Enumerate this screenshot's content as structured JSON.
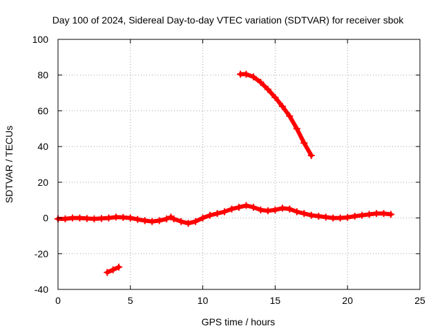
{
  "chart_data": {
    "type": "scatter",
    "title": "Day 100 of 2024, Sidereal Day-to-day VTEC variation (SDTVAR) for receiver sbok",
    "xlabel": "GPS time / hours",
    "ylabel": "SDTVAR / TECUs",
    "xlim": [
      0,
      25
    ],
    "ylim": [
      -40,
      100
    ],
    "xticks": [
      0,
      5,
      10,
      15,
      20,
      25
    ],
    "yticks": [
      -40,
      -20,
      0,
      20,
      40,
      60,
      80,
      100
    ],
    "grid": true,
    "color": "#ff0000",
    "series": [
      {
        "name": "main-track",
        "x": [
          0.0,
          0.5,
          1.0,
          1.5,
          2.0,
          2.5,
          3.0,
          3.5,
          4.0,
          4.5,
          5.0,
          5.5,
          6.0,
          6.5,
          7.0,
          7.5,
          7.8,
          8.0,
          8.5,
          9.0,
          9.5,
          10.0,
          10.5,
          11.0,
          11.5,
          12.0,
          12.5,
          13.0,
          13.5,
          14.0,
          14.5,
          15.0,
          15.5,
          16.0,
          16.5,
          17.0,
          17.5,
          18.0,
          18.5,
          19.0,
          19.5,
          20.0,
          20.5,
          21.0,
          21.5,
          22.0,
          22.5,
          23.0
        ],
        "y": [
          -0.5,
          -0.5,
          0.0,
          0.0,
          -0.3,
          -0.5,
          -0.3,
          0.0,
          0.5,
          0.3,
          0.0,
          -0.8,
          -1.5,
          -2.0,
          -1.5,
          -0.5,
          0.5,
          -0.5,
          -2.0,
          -3.0,
          -2.0,
          0.0,
          1.5,
          2.5,
          3.5,
          5.0,
          6.0,
          7.0,
          6.0,
          4.5,
          4.0,
          4.5,
          5.5,
          5.0,
          3.5,
          2.5,
          1.5,
          1.0,
          0.5,
          0.0,
          0.0,
          0.3,
          1.0,
          1.5,
          2.0,
          2.5,
          2.5,
          2.0
        ]
      },
      {
        "name": "high-arc",
        "x": [
          12.6,
          13.0,
          13.5,
          14.0,
          14.5,
          15.0,
          15.5,
          16.0,
          16.5,
          17.0,
          17.5
        ],
        "y": [
          80.5,
          80.5,
          79.0,
          76.0,
          72.0,
          67.5,
          62.5,
          57.0,
          50.0,
          42.0,
          35.0
        ]
      },
      {
        "name": "low-segment",
        "x": [
          3.4,
          3.8,
          4.2
        ],
        "y": [
          -30.5,
          -29.0,
          -27.5
        ]
      }
    ]
  }
}
